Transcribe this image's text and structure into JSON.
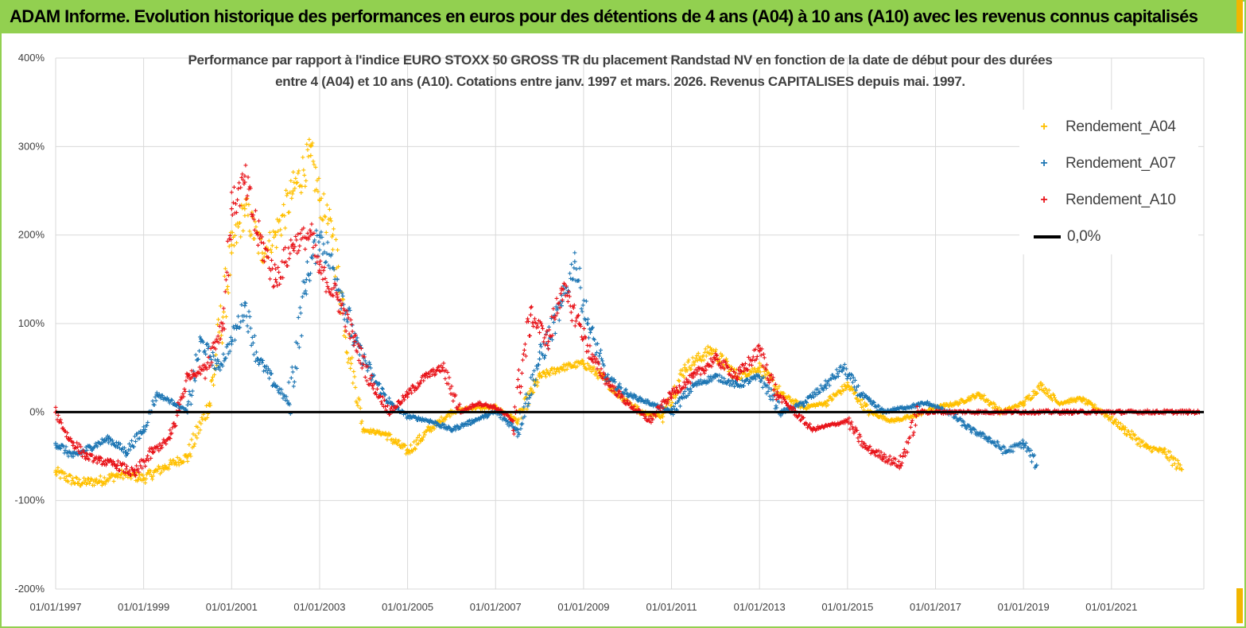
{
  "banner": {
    "title": "ADAM Informe. Evolution historique des performances en euros pour des détentions de 4 ans (A04) à 10 ans (A10) avec les revenus connus capitalisés"
  },
  "chart_data": {
    "type": "scatter",
    "title_line1": "Performance par rapport à l'indice EURO STOXX 50 GROSS TR  du placement Randstad NV en fonction de la date de début pour des durées",
    "title_line2": "entre 4 (A04) et 10 ans (A10). Cotations entre janv. 1997 et mars. 2026. Revenus CAPITALISES depuis mai. 1997.",
    "xlabel": "",
    "ylabel": "",
    "x_range": [
      1997.0,
      2023.1
    ],
    "ylim": [
      -200,
      400
    ],
    "y_ticks": [
      "400%",
      "300%",
      "200%",
      "100%",
      "0%",
      "-100%",
      "-200%"
    ],
    "y_tick_values": [
      400,
      300,
      200,
      100,
      0,
      -100,
      -200
    ],
    "x_tick_labels": [
      "01/01/1997",
      "01/01/1999",
      "01/01/2001",
      "01/01/2003",
      "01/01/2005",
      "01/01/2007",
      "01/01/2009",
      "01/01/2011",
      "01/01/2013",
      "01/01/2015",
      "01/01/2017",
      "01/01/2019",
      "01/01/2021"
    ],
    "x_tick_values": [
      1997,
      1999,
      2001,
      2003,
      2005,
      2007,
      2009,
      2011,
      2013,
      2015,
      2017,
      2019,
      2021
    ],
    "reference_line": {
      "name": "0,0%",
      "value": 0,
      "color": "#000000"
    },
    "series": [
      {
        "name": "Rendement_A04",
        "color": "#ffc000",
        "marker": "+",
        "x": [
          1997.0,
          1997.5,
          1998.0,
          1998.5,
          1999.0,
          1999.5,
          2000.0,
          2000.5,
          2001.0,
          2001.3,
          2001.7,
          2002.0,
          2002.4,
          2002.8,
          2003.0,
          2003.3,
          2003.7,
          2004.0,
          2004.5,
          2005.0,
          2005.5,
          2006.0,
          2006.5,
          2007.0,
          2007.5,
          2008.0,
          2008.5,
          2009.0,
          2009.4,
          2009.8,
          2010.3,
          2010.8,
          2011.3,
          2011.9,
          2012.5,
          2013.0,
          2013.5,
          2014.0,
          2014.5,
          2015.0,
          2015.5,
          2016.0,
          2016.5,
          2017.0,
          2017.5,
          2018.0,
          2018.5,
          2019.0,
          2019.4,
          2019.8,
          2020.3,
          2020.8,
          2021.3,
          2021.8,
          2022.2,
          2022.6
        ],
        "y": [
          -68,
          -80,
          -78,
          -70,
          -75,
          -62,
          -50,
          10,
          180,
          230,
          180,
          200,
          250,
          290,
          240,
          200,
          60,
          -20,
          -25,
          -45,
          -20,
          0,
          5,
          5,
          -10,
          40,
          50,
          55,
          40,
          20,
          0,
          -5,
          50,
          70,
          40,
          50,
          20,
          5,
          10,
          30,
          0,
          -10,
          -5,
          5,
          10,
          20,
          0,
          10,
          30,
          10,
          15,
          0,
          -20,
          -40,
          -45,
          -65
        ]
      },
      {
        "name": "Rendement_A07",
        "color": "#1f77b4",
        "marker": "+",
        "x": [
          1997.0,
          1997.4,
          1997.8,
          1998.2,
          1998.6,
          1999.0,
          1999.3,
          1999.7,
          2000.0,
          2000.3,
          2000.7,
          2001.0,
          2001.3,
          2001.6,
          2002.0,
          2002.3,
          2002.7,
          2003.0,
          2003.4,
          2003.8,
          2004.2,
          2004.6,
          2005.0,
          2005.5,
          2006.0,
          2006.5,
          2007.0,
          2007.5,
          2008.0,
          2008.5,
          2008.8,
          2009.1,
          2009.5,
          2010.0,
          2010.5,
          2011.0,
          2011.5,
          2012.0,
          2012.5,
          2013.0,
          2013.5,
          2014.0,
          2014.5,
          2014.9,
          2015.3,
          2015.8,
          2016.3,
          2016.8,
          2017.3,
          2017.8,
          2018.2,
          2018.6,
          2019.0,
          2019.3
        ],
        "y": [
          -35,
          -50,
          -40,
          -30,
          -45,
          -20,
          20,
          10,
          0,
          80,
          50,
          80,
          120,
          60,
          30,
          10,
          150,
          200,
          150,
          80,
          40,
          10,
          -5,
          -10,
          -20,
          -10,
          0,
          -20,
          60,
          120,
          170,
          100,
          40,
          20,
          10,
          0,
          30,
          40,
          30,
          40,
          0,
          10,
          30,
          50,
          20,
          0,
          5,
          10,
          0,
          -20,
          -30,
          -45,
          -35,
          -60
        ]
      },
      {
        "name": "Rendement_A10",
        "color": "#e8151b",
        "marker": "+",
        "x": [
          1997.0,
          1997.3,
          1997.7,
          1998.0,
          1998.4,
          1998.8,
          1999.2,
          1999.6,
          2000.0,
          2000.4,
          2000.8,
          2001.0,
          2001.3,
          2001.6,
          2002.0,
          2002.4,
          2002.8,
          2003.0,
          2003.4,
          2003.8,
          2004.2,
          2004.6,
          2005.0,
          2005.4,
          2005.8,
          2006.2,
          2006.6,
          2007.0,
          2007.4,
          2007.8,
          2008.2,
          2008.5,
          2008.9,
          2009.2,
          2009.6,
          2010.0,
          2010.5,
          2011.0,
          2011.5,
          2012.0,
          2012.5,
          2013.0,
          2013.4,
          2013.8,
          2014.2,
          2014.6,
          2015.0,
          2015.4,
          2015.8,
          2016.2,
          2016.6,
          2017.0,
          2018.0,
          2019.0,
          2020.0,
          2021.0,
          2022.0,
          2023.0
        ],
        "y": [
          0,
          -30,
          -50,
          -55,
          -60,
          -70,
          -45,
          -30,
          40,
          50,
          100,
          230,
          260,
          200,
          150,
          190,
          200,
          160,
          130,
          80,
          30,
          0,
          20,
          40,
          50,
          0,
          10,
          5,
          -10,
          110,
          80,
          140,
          100,
          60,
          30,
          10,
          -10,
          20,
          40,
          60,
          40,
          70,
          20,
          0,
          -20,
          -15,
          -10,
          -40,
          -50,
          -60,
          0,
          0,
          0,
          0,
          0,
          0,
          0,
          0
        ]
      }
    ],
    "legend": {
      "position": "top-right",
      "entries": [
        "Rendement_A04",
        "Rendement_A07",
        "Rendement_A10",
        "0,0%"
      ]
    }
  },
  "colors": {
    "banner": "#92d050",
    "grid": "#d9d9d9",
    "axis_text": "#404040"
  }
}
